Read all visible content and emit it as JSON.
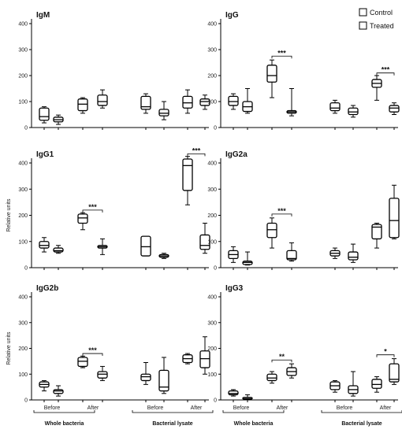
{
  "legend": {
    "control": "Control",
    "treated": "Treated"
  },
  "chart_data": {
    "type": "boxplot",
    "ylabel": "Relative units",
    "ylim": [
      0,
      400
    ],
    "yticks": [
      0,
      100,
      200,
      300,
      400
    ],
    "categories": [
      "Before",
      "After",
      "Before",
      "After"
    ],
    "groups": [
      "Whole bacteria",
      "Bacterial lysate"
    ],
    "series": [
      "Control",
      "Treated"
    ],
    "panels": [
      {
        "title": "IgM",
        "show_categories": false,
        "boxes": [
          {
            "min": 18,
            "q1": 28,
            "med": 42,
            "q3": 75,
            "max": 80
          },
          {
            "min": 12,
            "q1": 22,
            "med": 30,
            "q3": 40,
            "max": 48
          },
          {
            "min": 55,
            "q1": 65,
            "med": 90,
            "q3": 110,
            "max": 115
          },
          {
            "min": 75,
            "q1": 85,
            "med": 100,
            "q3": 125,
            "max": 145
          },
          {
            "min": 55,
            "q1": 70,
            "med": 80,
            "q3": 120,
            "max": 130
          },
          {
            "min": 30,
            "q1": 45,
            "med": 55,
            "q3": 70,
            "max": 100
          },
          {
            "min": 55,
            "q1": 75,
            "med": 95,
            "q3": 120,
            "max": 145
          },
          {
            "min": 70,
            "q1": 85,
            "med": 100,
            "q3": 110,
            "max": 125
          }
        ],
        "sig": []
      },
      {
        "title": "IgG",
        "show_categories": false,
        "boxes": [
          {
            "min": 70,
            "q1": 85,
            "med": 100,
            "q3": 120,
            "max": 130
          },
          {
            "min": 55,
            "q1": 62,
            "med": 80,
            "q3": 100,
            "max": 150
          },
          {
            "min": 115,
            "q1": 175,
            "med": 200,
            "q3": 240,
            "max": 260
          },
          {
            "min": 45,
            "q1": 55,
            "med": 60,
            "q3": 65,
            "max": 150
          },
          {
            "min": 55,
            "q1": 65,
            "med": 75,
            "q3": 95,
            "max": 105
          },
          {
            "min": 40,
            "q1": 50,
            "med": 60,
            "q3": 75,
            "max": 85
          },
          {
            "min": 105,
            "q1": 155,
            "med": 170,
            "q3": 185,
            "max": 200
          },
          {
            "min": 50,
            "q1": 60,
            "med": 75,
            "q3": 85,
            "max": 95
          }
        ],
        "sig": [
          {
            "pair": [
              2,
              3
            ],
            "label": "***",
            "y": 275
          },
          {
            "pair": [
              6,
              7
            ],
            "label": "***",
            "y": 210
          }
        ]
      },
      {
        "title": "IgG1",
        "show_categories": false,
        "boxes": [
          {
            "min": 60,
            "q1": 75,
            "med": 85,
            "q3": 100,
            "max": 115
          },
          {
            "min": 55,
            "q1": 60,
            "med": 65,
            "q3": 75,
            "max": 85
          },
          {
            "min": 145,
            "q1": 170,
            "med": 190,
            "q3": 205,
            "max": 210
          },
          {
            "min": 50,
            "q1": 75,
            "med": 80,
            "q3": 85,
            "max": 110
          },
          {
            "min": 45,
            "q1": 45,
            "med": 80,
            "q3": 120,
            "max": 120
          },
          {
            "min": 35,
            "q1": 40,
            "med": 45,
            "q3": 50,
            "max": 55
          },
          {
            "min": 240,
            "q1": 295,
            "med": 390,
            "q3": 415,
            "max": 425
          },
          {
            "min": 55,
            "q1": 70,
            "med": 85,
            "q3": 125,
            "max": 170
          }
        ],
        "sig": [
          {
            "pair": [
              2,
              3
            ],
            "label": "***",
            "y": 220
          },
          {
            "pair": [
              6,
              7
            ],
            "label": "***",
            "y": 435
          }
        ]
      },
      {
        "title": "IgG2a",
        "show_categories": false,
        "boxes": [
          {
            "min": 20,
            "q1": 35,
            "med": 50,
            "q3": 65,
            "max": 80
          },
          {
            "min": 10,
            "q1": 12,
            "med": 20,
            "q3": 25,
            "max": 60
          },
          {
            "min": 75,
            "q1": 115,
            "med": 145,
            "q3": 170,
            "max": 190
          },
          {
            "min": 25,
            "q1": 30,
            "med": 35,
            "q3": 65,
            "max": 95
          },
          {
            "min": 35,
            "q1": 45,
            "med": 55,
            "q3": 65,
            "max": 75
          },
          {
            "min": 20,
            "q1": 30,
            "med": 40,
            "q3": 60,
            "max": 90
          },
          {
            "min": 75,
            "q1": 110,
            "med": 155,
            "q3": 165,
            "max": 170
          },
          {
            "min": 110,
            "q1": 115,
            "med": 180,
            "q3": 265,
            "max": 315
          }
        ],
        "sig": [
          {
            "pair": [
              2,
              3
            ],
            "label": "***",
            "y": 205
          }
        ]
      },
      {
        "title": "IgG2b",
        "show_categories": true,
        "boxes": [
          {
            "min": 35,
            "q1": 50,
            "med": 60,
            "q3": 70,
            "max": 75
          },
          {
            "min": 15,
            "q1": 25,
            "med": 35,
            "q3": 40,
            "max": 55
          },
          {
            "min": 125,
            "q1": 130,
            "med": 150,
            "q3": 165,
            "max": 170
          },
          {
            "min": 75,
            "q1": 85,
            "med": 100,
            "q3": 110,
            "max": 130
          },
          {
            "min": 60,
            "q1": 75,
            "med": 90,
            "q3": 100,
            "max": 145
          },
          {
            "min": 25,
            "q1": 35,
            "med": 50,
            "q3": 115,
            "max": 165
          },
          {
            "min": 140,
            "q1": 145,
            "med": 160,
            "q3": 175,
            "max": 180
          },
          {
            "min": 100,
            "q1": 125,
            "med": 160,
            "q3": 190,
            "max": 245
          }
        ],
        "sig": [
          {
            "pair": [
              2,
              3
            ],
            "label": "***",
            "y": 180
          }
        ]
      },
      {
        "title": "IgG3",
        "show_categories": true,
        "boxes": [
          {
            "min": 15,
            "q1": 20,
            "med": 25,
            "q3": 35,
            "max": 40
          },
          {
            "min": 0,
            "q1": 3,
            "med": 5,
            "q3": 10,
            "max": 20
          },
          {
            "min": 65,
            "q1": 75,
            "med": 85,
            "q3": 100,
            "max": 110
          },
          {
            "min": 85,
            "q1": 95,
            "med": 110,
            "q3": 125,
            "max": 140
          },
          {
            "min": 30,
            "q1": 40,
            "med": 55,
            "q3": 70,
            "max": 75
          },
          {
            "min": 15,
            "q1": 25,
            "med": 40,
            "q3": 55,
            "max": 110
          },
          {
            "min": 30,
            "q1": 45,
            "med": 60,
            "q3": 80,
            "max": 90
          },
          {
            "min": 60,
            "q1": 70,
            "med": 80,
            "q3": 140,
            "max": 160
          }
        ],
        "sig": [
          {
            "pair": [
              2,
              3
            ],
            "label": "**",
            "y": 155
          },
          {
            "pair": [
              6,
              7
            ],
            "label": "*",
            "y": 175
          }
        ]
      }
    ]
  }
}
